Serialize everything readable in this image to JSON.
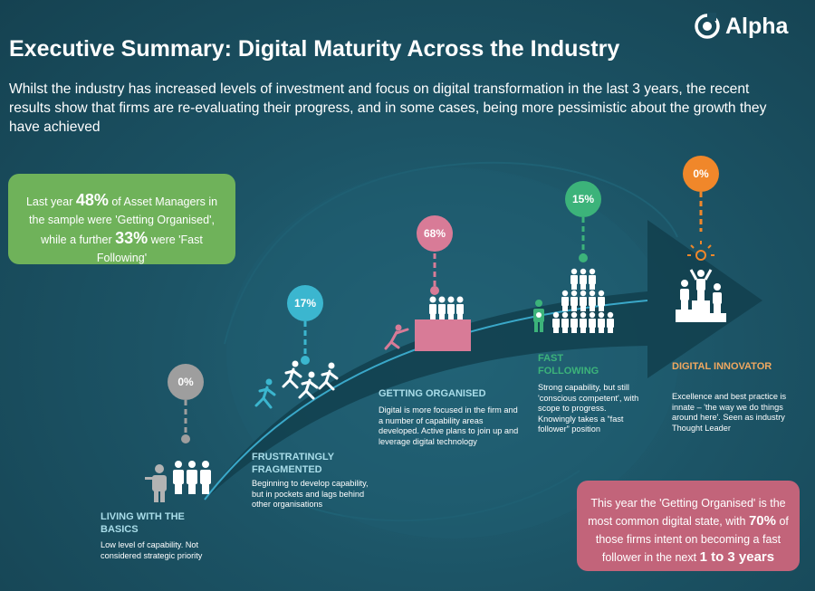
{
  "header": {
    "title": "Executive Summary: Digital Maturity Across the Industry",
    "subtitle": "Whilst the industry has increased levels of investment and focus on digital transformation in the last 3 years, the recent results show that firms are re-evaluating their progress, and in some cases, being more pessimistic about the growth they have achieved",
    "logo_text": "Alpha"
  },
  "callout_last_year": {
    "part1": "Last year ",
    "value1": "48%",
    "part2": " of Asset Managers in the sample were 'Getting Organised', while a further ",
    "value2": "33%",
    "part3": " were 'Fast Following'"
  },
  "callout_this_year": {
    "part1": "This year the 'Getting Organised' is the most common digital state, with ",
    "value1": "70%",
    "part2": " of those firms intent on becoming a fast follower in the next ",
    "value2": "1 to 3 years"
  },
  "stages": [
    {
      "percent": "0%",
      "title": "LIVING WITH THE BASICS",
      "description": "Low level of capability. Not considered strategic priority",
      "color": "#9e9e9e"
    },
    {
      "percent": "17%",
      "title": "FRUSTRATINGLY FRAGMENTED",
      "description": "Beginning to develop capability, but in pockets and lags behind other organisations",
      "color": "#3bb6cf"
    },
    {
      "percent": "68%",
      "title": "GETTING ORGANISED",
      "description": "Digital is more focused in the firm and a number of capability areas developed. Active plans to join up and leverage digital technology",
      "color": "#d87b97"
    },
    {
      "percent": "15%",
      "title": "FAST FOLLOWING",
      "description": "Strong capability, but still 'conscious competent', with scope to progress. Knowingly takes a “fast follower” position",
      "color": "#3cb37a"
    },
    {
      "percent": "0%",
      "title": "DIGITAL INNOVATOR",
      "description": "Excellence and best practice is innate – 'the way we do things around here'. Seen as industry Thought Leader",
      "color": "#f0872a"
    }
  ],
  "colors": {
    "background": "#1b4e60",
    "green_box": "#6fb25a",
    "pink_box": "#c2647a",
    "stage_title": "#a9dde9"
  }
}
